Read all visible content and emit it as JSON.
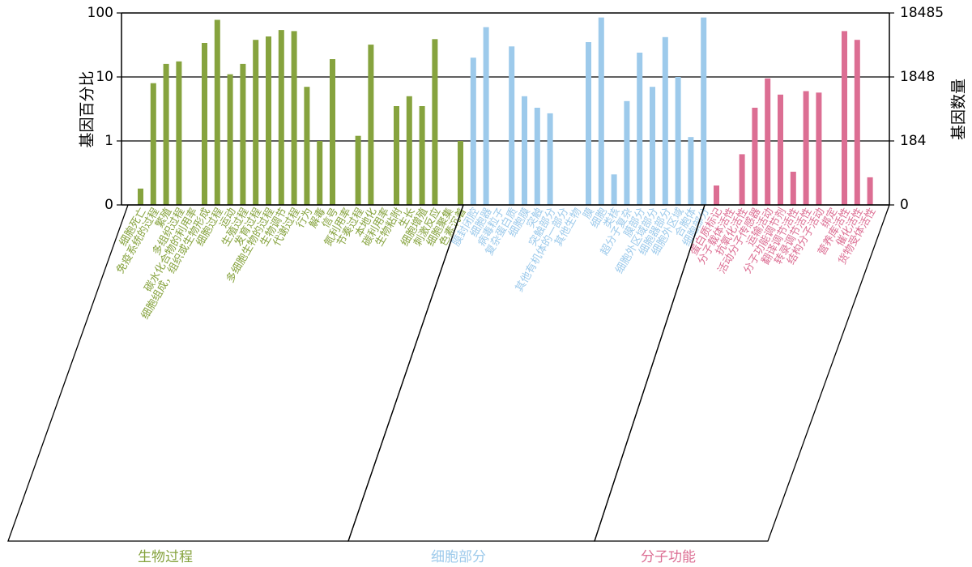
{
  "chart_data": {
    "type": "bar",
    "ylabel": "基因百分比",
    "ylabel_right": "基因数量",
    "y_scale": "log",
    "left_ticks": [
      "100",
      "10",
      "1",
      "0"
    ],
    "right_ticks": [
      "18485",
      "1848",
      "184",
      "0"
    ],
    "grid": "horizontal gridlines at 1, 10, 100",
    "groups": [
      {
        "name": "生物过程",
        "color": "#86a33e",
        "categories": [
          "细胞死亡",
          "免疫系统的过程",
          "繁殖",
          "多组织过程",
          "碳水化合物的利用率",
          "细胞组成，组织或生物形成",
          "细胞过程",
          "运动",
          "生殖过程",
          "发育过程",
          "多细胞生物的过程",
          "生物调节",
          "代谢过程",
          "行为",
          "解毒",
          "信号",
          "氮利用率",
          "节奏过程",
          "本地化",
          "碳利用率",
          "生物粘附",
          "生长",
          "细胞增殖",
          "刺激反应",
          "细胞聚集",
          "色素沉着"
        ],
        "values": [
          0.18,
          8,
          16,
          17.5,
          null,
          34,
          78,
          11,
          16,
          38,
          43,
          54,
          52,
          7,
          1,
          19,
          null,
          1.2,
          32,
          null,
          3.5,
          5,
          3.5,
          39,
          null,
          1
        ]
      },
      {
        "name": "细胞部分",
        "color": "#9dcaeb",
        "categories": [
          "膜封闭腔",
          "细胞器",
          "病毒粒子",
          "复杂蛋白质",
          "细胞膜",
          "突触",
          "突触部分",
          "其他有机体的一部分",
          "其他生物",
          "膜",
          "细胞",
          "类核",
          "超分子复杂",
          "膜部分",
          "细胞外区域部分",
          "细胞器部分",
          "细胞外区域",
          "合胞体",
          "细胞部分"
        ],
        "values": [
          20,
          60,
          null,
          30,
          5,
          3.3,
          2.7,
          null,
          null,
          35,
          85,
          0.3,
          4.2,
          24,
          7,
          42,
          10,
          1.15,
          85
        ]
      },
      {
        "name": "分子功能",
        "color": "#dc6e93",
        "categories": [
          "蛋白质标记",
          "分子载体活性",
          "抗氧化活性",
          "活动分子传感器",
          "运输活动",
          "分子功能调节剂",
          "翻译调节活性",
          "转录调节活性",
          "结构分子活动",
          "绑定",
          "营养库活性",
          "催化活性",
          "货物受体活性"
        ],
        "values": [
          0.06,
          0.1,
          0.62,
          3.3,
          9.5,
          5.3,
          0.33,
          6,
          5.7,
          null,
          52,
          38,
          0.27
        ]
      }
    ]
  }
}
